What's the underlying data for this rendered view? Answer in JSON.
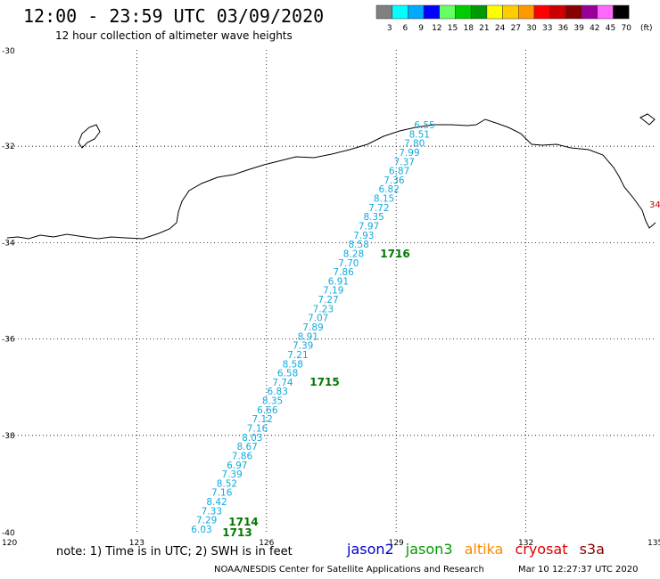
{
  "header": {
    "title": "12:00 - 23:59 UTC 03/09/2020",
    "subtitle": "12 hour collection of altimeter wave heights"
  },
  "colorbar": {
    "unit": "(ft)",
    "bins": [
      {
        "label": "3",
        "color": "#808080"
      },
      {
        "label": "6",
        "color": "#00ffff"
      },
      {
        "label": "9",
        "color": "#00aaff"
      },
      {
        "label": "12",
        "color": "#0000ff"
      },
      {
        "label": "15",
        "color": "#66ff66"
      },
      {
        "label": "18",
        "color": "#00cc00"
      },
      {
        "label": "21",
        "color": "#009900"
      },
      {
        "label": "24",
        "color": "#ffff00"
      },
      {
        "label": "27",
        "color": "#ffcc00"
      },
      {
        "label": "30",
        "color": "#ff9900"
      },
      {
        "label": "33",
        "color": "#ff0000"
      },
      {
        "label": "36",
        "color": "#cc0000"
      },
      {
        "label": "39",
        "color": "#880000"
      },
      {
        "label": "42",
        "color": "#990099"
      },
      {
        "label": "45",
        "color": "#ff66ff"
      },
      {
        "label": "70",
        "color": "#000000"
      }
    ]
  },
  "map": {
    "lon_range": [
      120,
      135
    ],
    "lat_range": [
      -40,
      -30
    ],
    "lon_ticks": [
      "123",
      "126",
      "129",
      "132"
    ],
    "lat_ticks": [
      "-32",
      "-34",
      "-36",
      "-38"
    ],
    "corner_labels": {
      "top_left": "-30",
      "bottom_left": "-40",
      "bottom_left_lon": "120",
      "bottom_right": "135"
    },
    "edge_label": "34",
    "swh_color": "#11aadd",
    "time_color": "#007700",
    "track_start": [
      126.6,
      -31.7
    ],
    "track_end": [
      125.6,
      -40.0
    ],
    "swh_values": [
      "6.55",
      "8.51",
      "7.80",
      "7.99",
      "7.37",
      "6.87",
      "7.36",
      "6.82",
      "8.15",
      "7.72",
      "8.35",
      "7.97",
      "7.93",
      "8.58",
      "8.28",
      "7.70",
      "7.86",
      "6.91",
      "7.19",
      "7.27",
      "7.23",
      "7.07",
      "7.89",
      "8.91",
      "7.39",
      "7.21",
      "8.58",
      "6.58",
      "7.74",
      "6.83",
      "8.35",
      "6.66",
      "7.12",
      "7.16",
      "8.03",
      "8.67",
      "7.86",
      "6.97",
      "7.39",
      "8.52",
      "7.16",
      "8.42",
      "7.33",
      "7.29",
      "6.03"
    ],
    "time_labels": [
      {
        "label": "1716",
        "lon": 129.0,
        "lat": -34.0
      },
      {
        "label": "1715",
        "lon": 127.0,
        "lat": -37.1
      },
      {
        "label": "1714",
        "lon": 122.6,
        "lat": -39.8
      },
      {
        "label": "1713",
        "lon": 122.6,
        "lat": -40.0
      }
    ]
  },
  "note": "note:  1) Time is in UTC;  2) SWH is in feet",
  "legend": [
    {
      "label": "jason2",
      "color": "#0000cc"
    },
    {
      "label": "jason3",
      "color": "#009900"
    },
    {
      "label": "altika",
      "color": "#ff8800"
    },
    {
      "label": "cryosat",
      "color": "#dd0000"
    },
    {
      "label": "s3a",
      "color": "#880000"
    }
  ],
  "footer": {
    "credit": "NOAA/NESDIS Center for Satellite Applications and Research",
    "timestamp": "Mar 10 12:27:37 UTC 2020"
  }
}
